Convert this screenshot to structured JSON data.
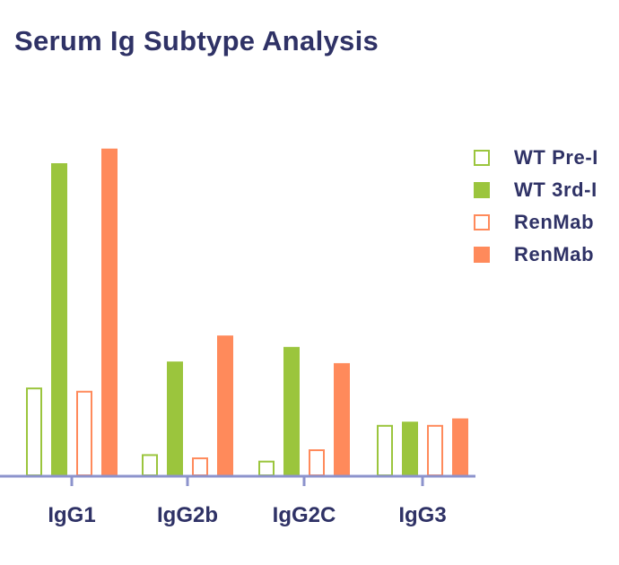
{
  "chart_data": {
    "type": "bar",
    "title": "Serum Ig Subtype Analysis",
    "xlabel": "",
    "ylabel": "",
    "ylim": [
      0,
      100
    ],
    "categories": [
      "IgG1",
      "IgG2b",
      "IgG2C",
      "IgG3"
    ],
    "series": [
      {
        "name": "WT Pre-I",
        "style": "outline",
        "color": "#9bc53d",
        "values": [
          27,
          6.5,
          4.5,
          15.5
        ]
      },
      {
        "name": "WT 3rd-I",
        "style": "filled",
        "color": "#9bc53d",
        "values": [
          96,
          35,
          39.5,
          16.5
        ]
      },
      {
        "name": "RenMab",
        "style": "outline",
        "color": "#ff8a5b",
        "values": [
          26,
          5.5,
          8,
          15.5
        ]
      },
      {
        "name": "RenMab",
        "style": "filled",
        "color": "#ff8a5b",
        "values": [
          100.5,
          43,
          34.5,
          17.5
        ]
      }
    ],
    "legend": {
      "position": "right"
    },
    "grid": false
  },
  "colors": {
    "title": "#2f3266",
    "axis": "#8c93cc",
    "text": "#2f3266"
  }
}
